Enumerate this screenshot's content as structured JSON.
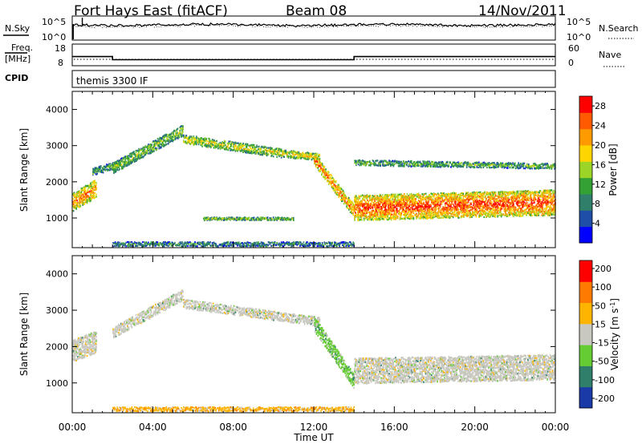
{
  "header": {
    "station": "Fort Hays East (fitACF)",
    "beam": "Beam 08",
    "date": "14/Nov/2011"
  },
  "top_panels": {
    "nsky_label": "N.Sky",
    "nsky_ticks": [
      "10^5",
      "10^0"
    ],
    "nsearch_label": "N.Search",
    "nsearch_ticks": [
      "10^5",
      "10^0"
    ],
    "freq_label_1": "Freq.",
    "freq_label_2": "[MHz]",
    "freq_ticks": [
      "18",
      "8"
    ],
    "nave_label": "Nave",
    "nave_ticks": [
      "60",
      "0"
    ],
    "cpid_label": "CPID",
    "cpid_value": "themis 3300 IF",
    "freq_steps_mhz": [
      [
        0,
        12
      ],
      [
        2,
        10.5
      ],
      [
        14,
        12
      ]
    ],
    "nave_level": 15
  },
  "chart_data": [
    {
      "type": "heatmap",
      "name": "power",
      "ylabel": "Slant Range [km]",
      "ylim": [
        180,
        4500
      ],
      "yticks": [
        "1000",
        "2000",
        "3000",
        "4000"
      ],
      "xlim_hours": [
        0,
        24
      ],
      "colorbar": {
        "label": "Power [dB]",
        "ticks": [
          "4",
          "8",
          "12",
          "16",
          "20",
          "24",
          "28"
        ],
        "range": [
          0,
          30
        ],
        "colors": [
          "#0000ff",
          "#1f4ea8",
          "#2f7f6a",
          "#33a133",
          "#9cd428",
          "#ffd500",
          "#ff9a00",
          "#ff5a00",
          "#ff0000"
        ]
      },
      "bands": [
        {
          "hours": [
            0.0,
            1.2
          ],
          "range_start": [
            1200,
            1700
          ],
          "range_end": [
            1700,
            2000
          ],
          "width_km": 500,
          "level": 0.75
        },
        {
          "hours": [
            1.0,
            2.3
          ],
          "range_start": [
            2200,
            2400
          ],
          "range_end": [
            2400,
            2600
          ],
          "width_km": 200,
          "level": 0.35
        },
        {
          "hours": [
            2.0,
            5.5
          ],
          "range_start": [
            2300,
            2500
          ],
          "range_end": [
            3300,
            3600
          ],
          "width_km": 300,
          "level": 0.45
        },
        {
          "hours": [
            5.5,
            10.5
          ],
          "range_start": [
            3100,
            3300
          ],
          "range_end": [
            2700,
            2900
          ],
          "width_km": 250,
          "level": 0.55
        },
        {
          "hours": [
            10.5,
            12.3
          ],
          "range_start": [
            2700,
            2900
          ],
          "range_end": [
            2600,
            2800
          ],
          "width_km": 200,
          "level": 0.6
        },
        {
          "hours": [
            12.0,
            14.0
          ],
          "range_start": [
            2300,
            3000
          ],
          "range_end": [
            1000,
            1400
          ],
          "width_km": 350,
          "level": 0.75
        },
        {
          "hours": [
            14.0,
            24.0
          ],
          "range_start": [
            900,
            1700
          ],
          "range_end": [
            1100,
            1800
          ],
          "width_km": 700,
          "level": 0.85
        },
        {
          "hours": [
            14.0,
            24.0
          ],
          "range_start": [
            2500,
            2600
          ],
          "range_end": [
            2400,
            2500
          ],
          "width_km": 150,
          "level": 0.4
        },
        {
          "hours": [
            6.5,
            11.0
          ],
          "range_start": [
            950,
            1050
          ],
          "range_end": [
            950,
            1050
          ],
          "width_km": 80,
          "level": 0.45
        },
        {
          "hours": [
            2.0,
            14.0
          ],
          "range_start": [
            250,
            350
          ],
          "range_end": [
            250,
            350
          ],
          "width_km": 120,
          "level": 0.3
        }
      ]
    },
    {
      "type": "heatmap",
      "name": "velocity",
      "ylabel": "Slant Range [km]",
      "ylim": [
        180,
        4500
      ],
      "yticks": [
        "1000",
        "2000",
        "3000",
        "4000"
      ],
      "xlim_hours": [
        0,
        24
      ],
      "xticks": [
        "00:00",
        "04:00",
        "08:00",
        "12:00",
        "16:00",
        "20:00",
        "00:00"
      ],
      "xlabel": "Time UT",
      "colorbar": {
        "label": "Velocity [m s^-1]",
        "ticks": [
          "200",
          "100",
          "50",
          "15",
          "-15",
          "-50",
          "-100",
          "-200"
        ],
        "colors": [
          "#1a3aa8",
          "#2f7f6a",
          "#66cc33",
          "#c8c8c0",
          "#ffb400",
          "#ff7a00",
          "#ff0000"
        ]
      },
      "bands": [
        {
          "hours": [
            0.0,
            1.2
          ],
          "range_start": [
            1200,
            2600
          ],
          "range_end": [
            1700,
            2600
          ],
          "width_km": 600,
          "level": 0.5
        },
        {
          "hours": [
            2.0,
            5.5
          ],
          "range_start": [
            2300,
            2500
          ],
          "range_end": [
            3300,
            3600
          ],
          "width_km": 300,
          "level": 0.5
        },
        {
          "hours": [
            5.5,
            12.3
          ],
          "range_start": [
            3100,
            3300
          ],
          "range_end": [
            2600,
            2800
          ],
          "width_km": 250,
          "level": 0.5
        },
        {
          "hours": [
            12.0,
            14.0
          ],
          "range_start": [
            2000,
            3300
          ],
          "range_end": [
            800,
            1300
          ],
          "width_km": 400,
          "level": 0.3
        },
        {
          "hours": [
            14.0,
            24.0
          ],
          "range_start": [
            1000,
            1700
          ],
          "range_end": [
            1100,
            1800
          ],
          "width_km": 700,
          "level": 0.5
        },
        {
          "hours": [
            2.0,
            14.0
          ],
          "range_start": [
            250,
            350
          ],
          "range_end": [
            250,
            350
          ],
          "width_km": 120,
          "level": 0.8
        }
      ]
    }
  ]
}
